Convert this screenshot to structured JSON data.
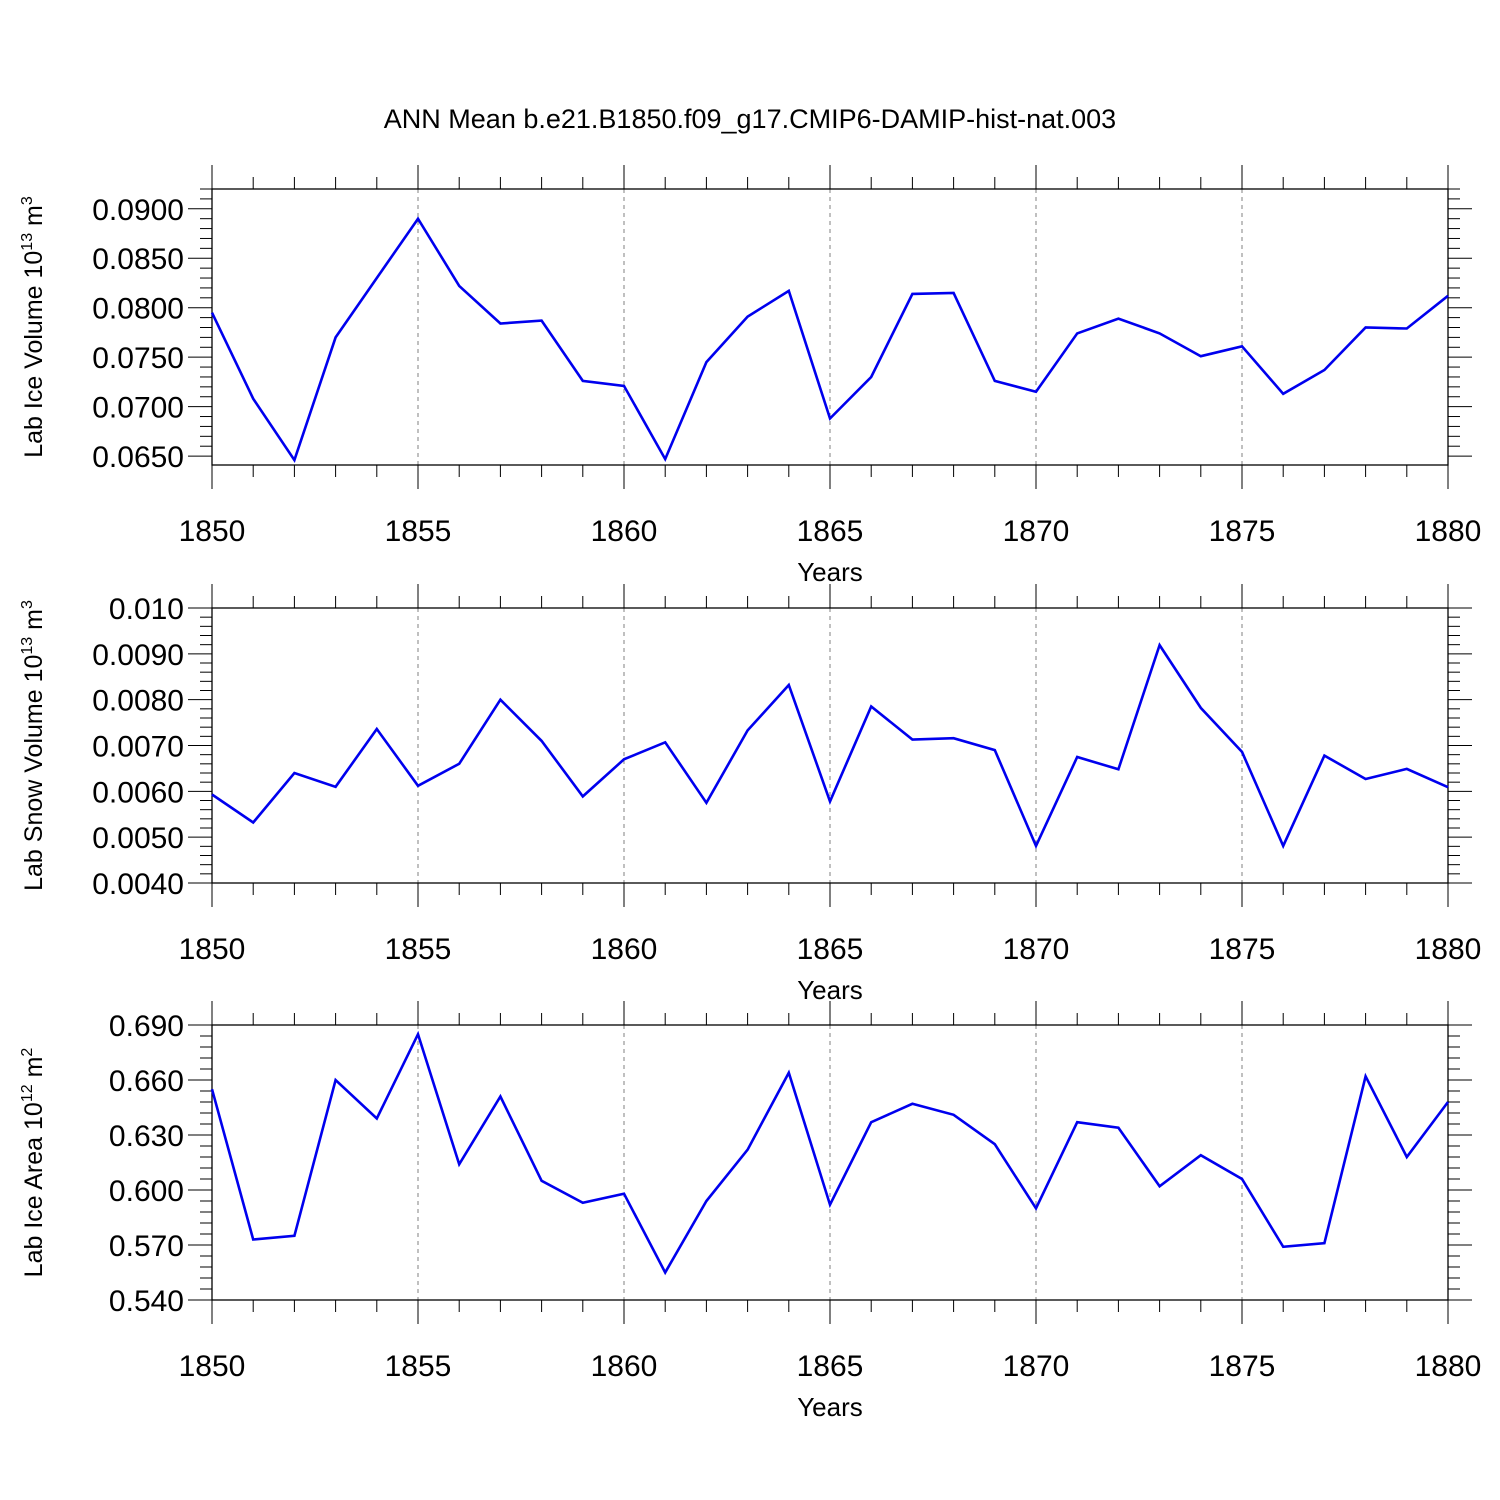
{
  "title": "ANN Mean b.e21.B1850.f09_g17.CMIP6-DAMIP-hist-nat.003",
  "line_color": "#0000ee",
  "chart_data": [
    {
      "type": "line",
      "ylabel": "Lab Ice Volume 10",
      "ylabel_exp": "13",
      "ylabel_unit": " m",
      "ylabel_unit_exp": "3",
      "xlabel": "Years",
      "xlim": [
        1850,
        1880
      ],
      "ylim": [
        0.0641,
        0.092
      ],
      "yticks": [
        "0.0650",
        "0.0700",
        "0.0750",
        "0.0800",
        "0.0850",
        "0.0900"
      ],
      "ytick_values": [
        0.065,
        0.07,
        0.075,
        0.08,
        0.085,
        0.09
      ],
      "xticks": [
        "1850",
        "1855",
        "1860",
        "1865",
        "1870",
        "1875",
        "1880"
      ],
      "grid": "vertical-dashed",
      "x": [
        1850,
        1851,
        1852,
        1853,
        1854,
        1855,
        1856,
        1857,
        1858,
        1859,
        1860,
        1861,
        1862,
        1863,
        1864,
        1865,
        1866,
        1867,
        1868,
        1869,
        1870,
        1871,
        1872,
        1873,
        1874,
        1875,
        1876,
        1877,
        1878,
        1879,
        1880
      ],
      "values": [
        0.0795,
        0.0708,
        0.0646,
        0.077,
        0.083,
        0.089,
        0.0822,
        0.0784,
        0.0787,
        0.0726,
        0.0721,
        0.0647,
        0.0745,
        0.0791,
        0.0817,
        0.0688,
        0.073,
        0.0814,
        0.0815,
        0.0726,
        0.0715,
        0.0774,
        0.0789,
        0.0774,
        0.0751,
        0.0761,
        0.0713,
        0.0737,
        0.078,
        0.0779,
        0.0812
      ]
    },
    {
      "type": "line",
      "ylabel": "Lab Snow Volume 10",
      "ylabel_exp": "13",
      "ylabel_unit": " m",
      "ylabel_unit_exp": "3",
      "xlabel": "Years",
      "xlim": [
        1850,
        1880
      ],
      "ylim": [
        0.004,
        0.01
      ],
      "yticks": [
        "0.0040",
        "0.0050",
        "0.0060",
        "0.0070",
        "0.0080",
        "0.0090",
        "0.010"
      ],
      "ytick_values": [
        0.004,
        0.005,
        0.006,
        0.007,
        0.008,
        0.009,
        0.01
      ],
      "xticks": [
        "1850",
        "1855",
        "1860",
        "1865",
        "1870",
        "1875",
        "1880"
      ],
      "grid": "vertical-dashed",
      "x": [
        1850,
        1851,
        1852,
        1853,
        1854,
        1855,
        1856,
        1857,
        1858,
        1859,
        1860,
        1861,
        1862,
        1863,
        1864,
        1865,
        1866,
        1867,
        1868,
        1869,
        1870,
        1871,
        1872,
        1873,
        1874,
        1875,
        1876,
        1877,
        1878,
        1879,
        1880
      ],
      "values": [
        0.00593,
        0.00532,
        0.0064,
        0.0061,
        0.00736,
        0.00612,
        0.0066,
        0.008,
        0.0071,
        0.00589,
        0.0067,
        0.00707,
        0.00575,
        0.00733,
        0.00832,
        0.00578,
        0.00785,
        0.00713,
        0.00716,
        0.0069,
        0.00481,
        0.00675,
        0.00648,
        0.00919,
        0.00782,
        0.00686,
        0.00481,
        0.00678,
        0.00627,
        0.00649,
        0.00609
      ]
    },
    {
      "type": "line",
      "ylabel": "Lab Ice Area 10",
      "ylabel_exp": "12",
      "ylabel_unit": " m",
      "ylabel_unit_exp": "2",
      "xlabel": "Years",
      "xlim": [
        1850,
        1880
      ],
      "ylim": [
        0.54,
        0.69
      ],
      "yticks": [
        "0.540",
        "0.570",
        "0.600",
        "0.630",
        "0.660",
        "0.690"
      ],
      "ytick_values": [
        0.54,
        0.57,
        0.6,
        0.63,
        0.66,
        0.69
      ],
      "xticks": [
        "1850",
        "1855",
        "1860",
        "1865",
        "1870",
        "1875",
        "1880"
      ],
      "grid": "vertical-dashed",
      "x": [
        1850,
        1851,
        1852,
        1853,
        1854,
        1855,
        1856,
        1857,
        1858,
        1859,
        1860,
        1861,
        1862,
        1863,
        1864,
        1865,
        1866,
        1867,
        1868,
        1869,
        1870,
        1871,
        1872,
        1873,
        1874,
        1875,
        1876,
        1877,
        1878,
        1879,
        1880
      ],
      "values": [
        0.655,
        0.573,
        0.575,
        0.66,
        0.639,
        0.685,
        0.614,
        0.651,
        0.605,
        0.593,
        0.598,
        0.555,
        0.594,
        0.622,
        0.664,
        0.592,
        0.637,
        0.647,
        0.641,
        0.625,
        0.59,
        0.637,
        0.634,
        0.602,
        0.619,
        0.606,
        0.569,
        0.571,
        0.662,
        0.618,
        0.648
      ]
    }
  ]
}
